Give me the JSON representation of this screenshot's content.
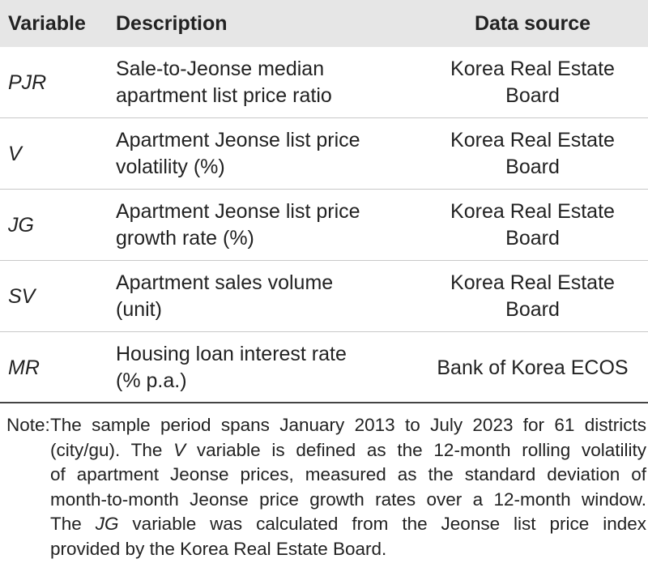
{
  "table": {
    "header": [
      "Variable",
      "Description",
      "Data source"
    ],
    "rows": [
      {
        "variable": "PJR",
        "description": [
          "Sale-to-Jeonse median",
          "apartment list price ratio"
        ],
        "source": [
          "Korea Real Estate",
          "Board"
        ]
      },
      {
        "variable": "V",
        "description": [
          "Apartment Jeonse list price",
          "volatility (%)"
        ],
        "source": [
          "Korea Real Estate",
          "Board"
        ]
      },
      {
        "variable": "JG",
        "description": [
          "Apartment Jeonse list price",
          "growth rate (%)"
        ],
        "source": [
          "Korea Real Estate",
          "Board"
        ]
      },
      {
        "variable": "SV",
        "description": [
          "Apartment sales volume",
          "(unit)"
        ],
        "source": [
          "Korea Real Estate",
          "Board"
        ]
      },
      {
        "variable": "MR",
        "description": [
          "Housing loan interest rate",
          "(% p.a.)"
        ],
        "source": [
          "Bank of Korea ECOS"
        ]
      }
    ]
  },
  "note": {
    "label": "Note:",
    "lines": [
      [
        "The sample period spans January 2013 to July 2023 for 61 districts"
      ],
      [
        "(city/gu). The ",
        "V",
        " variable is defined as the 12-month rolling volatility"
      ],
      [
        "of apartment Jeonse prices, measured as the standard deviation of"
      ],
      [
        "month-to-month Jeonse price growth rates over a 12-month window."
      ],
      [
        "The ",
        "JG",
        " variable was calculated from the Jeonse list price index"
      ],
      [
        "provided by the Korea Real Estate Board."
      ]
    ]
  }
}
